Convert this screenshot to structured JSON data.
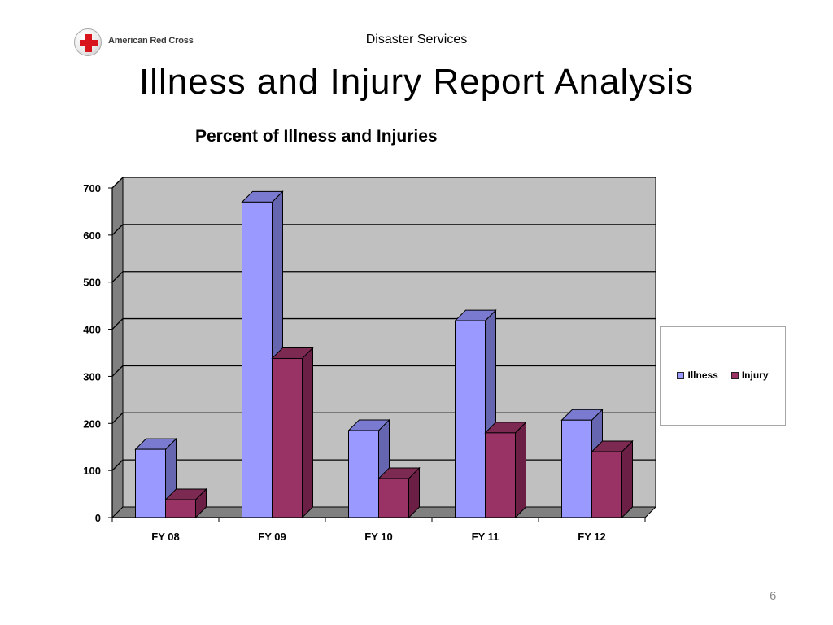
{
  "logo": {
    "text": "American Red Cross",
    "brand_color": "#d8141c"
  },
  "header": {
    "text": "Disaster Services"
  },
  "slide": {
    "title": "Illness and Injury Report Analysis",
    "page_number": "6"
  },
  "colors": {
    "wall": "#c0c0c0",
    "wall_side": "#808080",
    "illness_front": "#9999ff",
    "illness_side": "#6666b0",
    "illness_top": "#7a7ad0",
    "injury_front": "#993366",
    "injury_side": "#6b1f45",
    "injury_top": "#7d2a52"
  },
  "chart_data": {
    "type": "bar",
    "title": "Percent of Illness and Injuries",
    "categories": [
      "FY 08",
      "FY 09",
      "FY 10",
      "FY 11",
      "FY 12"
    ],
    "series": [
      {
        "name": "Illness",
        "values": [
          145,
          670,
          185,
          418,
          207
        ]
      },
      {
        "name": "Injury",
        "values": [
          38,
          338,
          83,
          180,
          140
        ]
      }
    ],
    "ylim": [
      0,
      700
    ],
    "yticks": [
      0,
      100,
      200,
      300,
      400,
      500,
      600,
      700
    ],
    "grid": true,
    "legend_position": "right",
    "style": "3d-clustered-column"
  }
}
